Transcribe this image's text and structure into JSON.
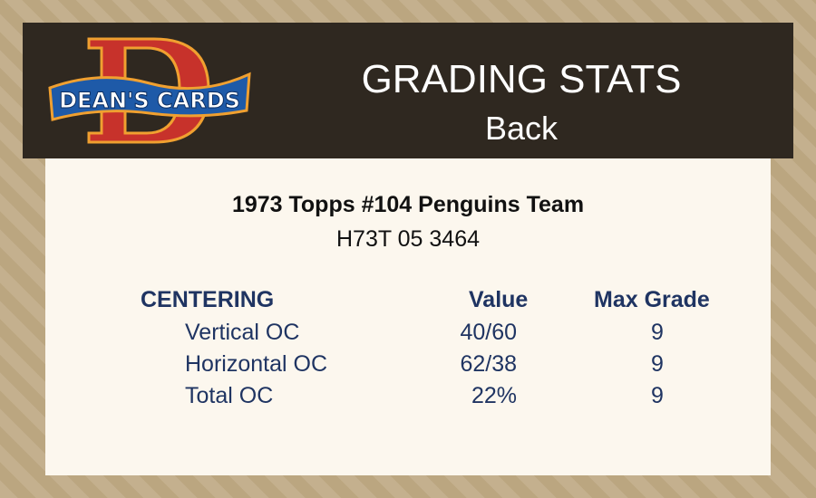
{
  "logo": {
    "text": "DEAN'S CARDS",
    "letter": "D"
  },
  "header": {
    "title": "GRADING STATS",
    "subtitle": "Back"
  },
  "card": {
    "name": "1973 Topps #104  Penguins Team",
    "cert": "H73T 05 3464"
  },
  "table": {
    "headers": {
      "section": "CENTERING",
      "value": "Value",
      "max": "Max Grade"
    },
    "rows": [
      {
        "label": "Vertical OC",
        "value": "40/60",
        "max": "9"
      },
      {
        "label": "Horizontal OC",
        "value": "62/38",
        "max": "9"
      },
      {
        "label": "Total OC",
        "value": "22%",
        "max": "9"
      }
    ]
  },
  "colors": {
    "header_bg": "#2f2820",
    "panel_bg": "#fcf7ee",
    "table_text": "#1f3462"
  }
}
